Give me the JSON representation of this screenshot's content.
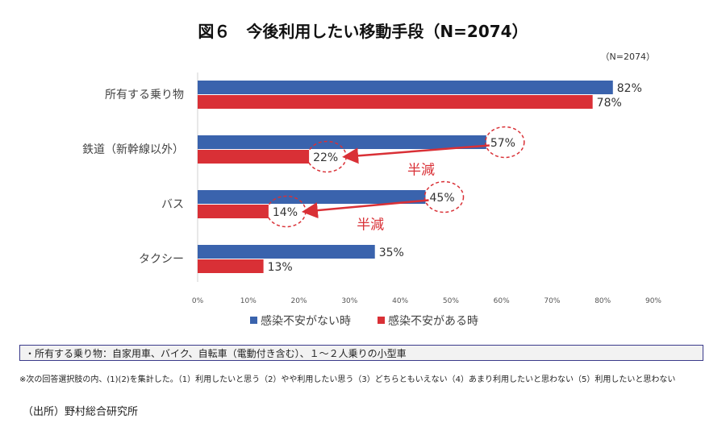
{
  "chart_data": {
    "type": "bar",
    "orientation": "horizontal",
    "title": "図６　今後利用したい移動手段（N=2074）",
    "subtitle": "（N=2074）",
    "categories": [
      "所有する乗り物",
      "鉄道（新幹線以外）",
      "バス",
      "タクシー"
    ],
    "series": [
      {
        "name": "感染不安がない時",
        "color": "#3a63ad",
        "values": [
          82,
          57,
          45,
          35
        ]
      },
      {
        "name": "感染不安がある時",
        "color": "#d93036",
        "values": [
          78,
          22,
          14,
          13
        ]
      }
    ],
    "xlim": [
      0,
      90
    ],
    "x_ticks": [
      "0%",
      "10%",
      "20%",
      "30%",
      "40%",
      "50%",
      "60%",
      "70%",
      "80%",
      "90%"
    ],
    "grid": false,
    "legend": "bottom",
    "annotations": [
      {
        "text": "半減",
        "from_category": "鉄道（新幹線以外）",
        "from": 57,
        "to": 22,
        "color": "#d93036"
      },
      {
        "text": "半減",
        "from_category": "バス",
        "from": 45,
        "to": 14,
        "color": "#d93036"
      }
    ]
  },
  "note": "・所有する乗り物：自家用車、バイク、自転車（電動付き含む）、１～２人乗りの小型車",
  "footnote": "※次の回答選択肢の内、(1)(2)を集計した。（1）利用したいと思う（2）やや利用したい思う（3）どちらともいえない（4）あまり利用したいと思わない（5）利用したいと思わない",
  "source": "（出所）野村総合研究所"
}
